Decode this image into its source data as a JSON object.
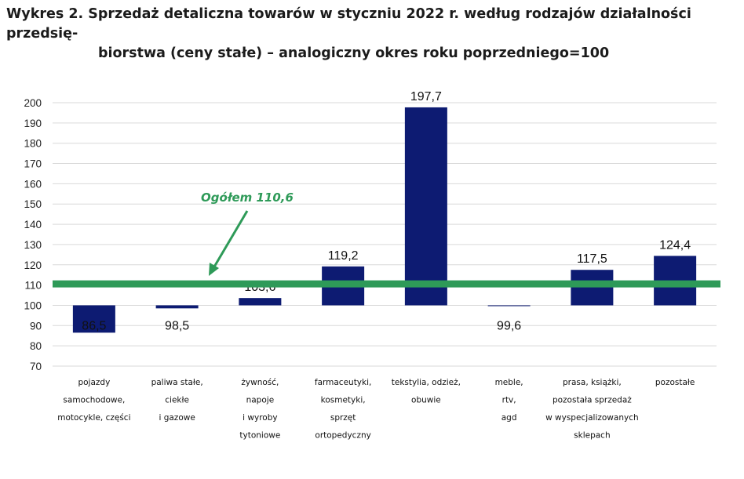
{
  "title": {
    "line1": "Wykres 2. Sprzedaż detaliczna towarów w styczniu 2022 r. według rodzajów działalności przedsię-",
    "line2": "biorstwa (ceny stałe) – analogiczny okres roku poprzedniego=100"
  },
  "colors": {
    "bar": "#0d1b72",
    "reference": "#2e9a58",
    "grid": "#d9d9d9"
  },
  "chart_data": {
    "type": "bar",
    "title": "Wykres 2. Sprzedaż detaliczna towarów w styczniu 2022 r. według rodzajów działalności przedsiębiorstwa (ceny stałe) – analogiczny okres roku poprzedniego=100",
    "xlabel": "",
    "ylabel": "",
    "ylim": [
      70,
      200
    ],
    "yticks": [
      70,
      80,
      90,
      100,
      110,
      120,
      130,
      140,
      150,
      160,
      170,
      180,
      190,
      200
    ],
    "baseline": 100,
    "grid": true,
    "categories": [
      [
        "pojazdy",
        "samochodowe,",
        "motocykle, części"
      ],
      [
        "paliwa stałe,",
        "ciekłe",
        "i gazowe"
      ],
      [
        "żywność,",
        "napoje",
        "i wyroby",
        "tytoniowe"
      ],
      [
        "farmaceutyki,",
        "kosmetyki,",
        "sprzęt",
        "ortopedyczny"
      ],
      [
        "tekstylia, odzież,",
        "obuwie"
      ],
      [
        "meble,",
        "rtv,",
        "agd"
      ],
      [
        "prasa, książki,",
        "pozostała sprzedaż",
        "w wyspecjalizowanych",
        "sklepach"
      ],
      [
        "pozostałe"
      ]
    ],
    "values": [
      86.5,
      98.5,
      103.6,
      119.2,
      197.7,
      99.6,
      117.5,
      124.4
    ],
    "value_labels": [
      "86,5",
      "98,5",
      "103,6",
      "119,2",
      "197,7",
      "99,6",
      "117,5",
      "124,4"
    ],
    "reference_line": {
      "value": 110.6,
      "label": "Ogółem 110,6"
    }
  }
}
